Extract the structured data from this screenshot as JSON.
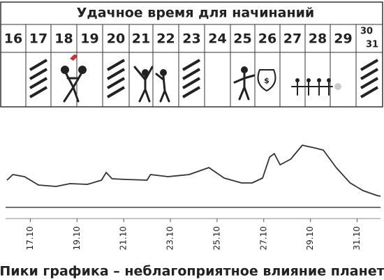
{
  "header": {
    "title": "Удачное время для начинаний"
  },
  "days": [
    "16",
    "17",
    "18",
    "19",
    "20",
    "21",
    "22",
    "23",
    "24",
    "25",
    "26",
    "27",
    "28",
    "29"
  ],
  "last_days": [
    "30",
    "31"
  ],
  "chart_data": {
    "type": "line",
    "x": [
      16,
      16.25,
      16.75,
      17.35,
      18.1,
      18.7,
      19.45,
      20.05,
      20.25,
      20.5,
      21.1,
      22.0,
      22.15,
      22.9,
      23.8,
      24.65,
      25.3,
      26.05,
      26.5,
      26.95,
      27.25,
      27.45,
      27.7,
      28.15,
      28.65,
      29.2,
      29.55,
      30.1,
      30.7,
      31.25,
      31.85,
      32
    ],
    "values": [
      39,
      47,
      44,
      32,
      30,
      34,
      33,
      39,
      50,
      41,
      40,
      39,
      47,
      44,
      47,
      57,
      42,
      35,
      35,
      42,
      72,
      77,
      61,
      69,
      89,
      85,
      82,
      57,
      35,
      24,
      17,
      16
    ],
    "color": "#333333",
    "xlim": [
      16,
      32
    ],
    "ylim": [
      0,
      100
    ],
    "xticks": [
      {
        "value": 17,
        "label": "17.10"
      },
      {
        "value": 19,
        "label": "19.10"
      },
      {
        "value": 21,
        "label": "21.10"
      },
      {
        "value": 23,
        "label": "23.10"
      },
      {
        "value": 25,
        "label": "25.10"
      },
      {
        "value": 27,
        "label": "27.10"
      },
      {
        "value": 29,
        "label": "29.10"
      },
      {
        "value": 31,
        "label": "31.10"
      }
    ]
  },
  "caption": "Пики графика – неблагоприятное влияние планет"
}
